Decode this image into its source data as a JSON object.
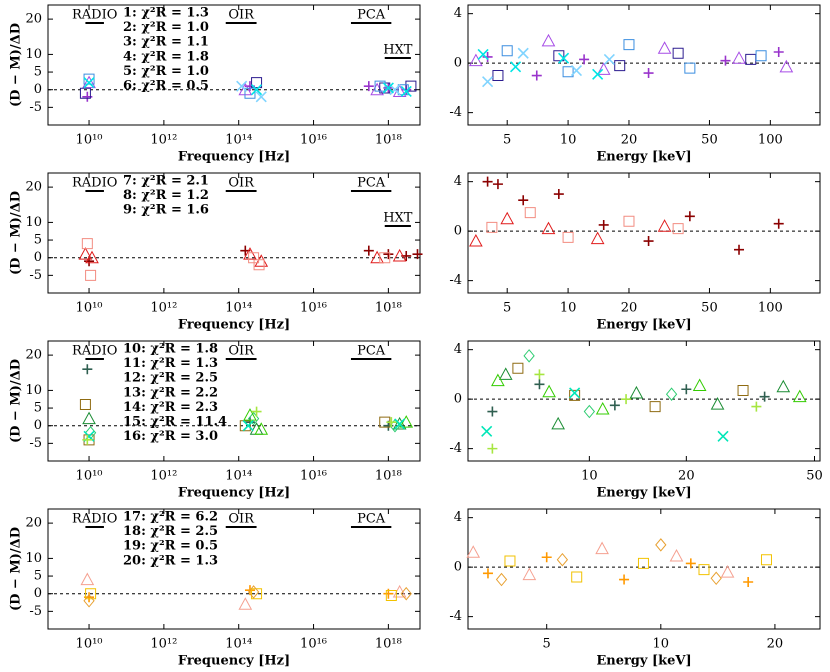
{
  "chart_data": [
    {
      "type": "scatter",
      "xlabel": "Frequency [Hz]",
      "ylabel": "(D − M)/ΔD",
      "log_x": true,
      "zero_line": true,
      "xlim": [
        800000000,
        7000000000000000000
      ],
      "ylim": [
        -10,
        24
      ],
      "xticks": [
        {
          "value": 10000000000,
          "label": "10¹⁰"
        },
        {
          "value": 1000000000000,
          "label": "10¹²"
        },
        {
          "value": 100000000000000,
          "label": "10¹⁴"
        },
        {
          "value": 10000000000000000,
          "label": "10¹⁶"
        },
        {
          "value": 1000000000000000000,
          "label": "10¹⁸"
        }
      ],
      "yticks": [
        -5,
        0,
        5,
        10,
        20
      ],
      "bands": [
        {
          "label": "RADIO",
          "range": [
            8000000000,
            25000000000
          ]
        },
        {
          "label": "OIR",
          "range": [
            45000000000000,
            300000000000000
          ]
        },
        {
          "label": "PCA",
          "range": [
            100000000000000000,
            1200000000000000000
          ]
        },
        {
          "label": "HXT",
          "range": [
            800000000000000000,
            4000000000000000000
          ]
        }
      ],
      "series": [
        {
          "name": "1: χ²R = 1.3",
          "color": "#9933cc",
          "marker": "plus",
          "x": [
            9000000000,
            200000000000000,
            300000000000000000,
            1000000000000000000,
            3000000000000000000
          ],
          "values": [
            -2,
            1,
            1,
            0.5,
            0
          ]
        },
        {
          "name": "2: χ²R = 1.0",
          "color": "#a64ce6",
          "marker": "triangle",
          "x": [
            10000000000,
            150000000000000,
            500000000000000000,
            2000000000000000000
          ],
          "values": [
            2,
            0,
            0,
            -0.5
          ]
        },
        {
          "name": "3: χ²R = 1.1",
          "color": "#2b1b8f",
          "marker": "square",
          "x": [
            8000000000,
            300000000000000,
            800000000000000000,
            4000000000000000000
          ],
          "values": [
            -1,
            2,
            0.5,
            1
          ]
        },
        {
          "name": "4: χ²R = 1.8",
          "color": "#3b8ee0",
          "marker": "square",
          "x": [
            10000000000,
            200000000000000,
            600000000000000000,
            2500000000000000000
          ],
          "values": [
            3,
            -1,
            1,
            0
          ]
        },
        {
          "name": "5: χ²R = 1.0",
          "color": "#80d4ff",
          "marker": "cross",
          "x": [
            120000000000000,
            400000000000000,
            1500000000000000000
          ],
          "values": [
            1,
            -2,
            0
          ]
        },
        {
          "name": "6: χ²R = 0.5",
          "color": "#00e5e5",
          "marker": "cross",
          "x": [
            10000000000,
            300000000000000,
            1000000000000000000,
            3000000000000000000
          ],
          "values": [
            2,
            0,
            0.5,
            -0.5
          ]
        }
      ]
    },
    {
      "type": "scatter",
      "xlabel": "Energy [keV]",
      "log_x": true,
      "zero_line": true,
      "xlim": [
        3.2,
        176
      ],
      "ylim": [
        -5,
        4.7
      ],
      "xticks": [
        5,
        10,
        20,
        50,
        100
      ],
      "yticks": [
        -4,
        0,
        4
      ],
      "series": [
        {
          "color": "#9933cc",
          "marker": "plus",
          "x": [
            4,
            7,
            12,
            25,
            60,
            110
          ],
          "values": [
            0.5,
            -1,
            0.3,
            -0.8,
            0.2,
            0.9
          ]
        },
        {
          "color": "#a64ce6",
          "marker": "triangle",
          "x": [
            3.5,
            8,
            15,
            30,
            70,
            120
          ],
          "values": [
            0.2,
            1.8,
            -0.5,
            1.2,
            0.4,
            -0.3
          ]
        },
        {
          "color": "#2b1b8f",
          "marker": "square",
          "x": [
            4.5,
            9,
            18,
            35,
            80
          ],
          "values": [
            -1,
            0.6,
            -0.2,
            0.8,
            0.3
          ]
        },
        {
          "color": "#3b8ee0",
          "marker": "square",
          "x": [
            5,
            10,
            20,
            40,
            90
          ],
          "values": [
            1,
            -0.7,
            1.5,
            -0.4,
            0.6
          ]
        },
        {
          "color": "#80d4ff",
          "marker": "cross",
          "x": [
            4,
            6,
            11,
            16
          ],
          "values": [
            -1.5,
            0.8,
            -0.6,
            0.3
          ]
        },
        {
          "color": "#00e5e5",
          "marker": "cross",
          "x": [
            3.8,
            5.5,
            9.5,
            14
          ],
          "values": [
            0.7,
            -0.3,
            0.4,
            -0.9
          ]
        }
      ]
    },
    {
      "type": "scatter",
      "xlabel": "Frequency [Hz]",
      "ylabel": "(D − M)/ΔD",
      "log_x": true,
      "zero_line": true,
      "xlim": [
        800000000,
        7000000000000000000
      ],
      "ylim": [
        -10,
        24
      ],
      "xticks": [
        {
          "value": 10000000000,
          "label": "10¹⁰"
        },
        {
          "value": 1000000000000,
          "label": "10¹²"
        },
        {
          "value": 100000000000000,
          "label": "10¹⁴"
        },
        {
          "value": 10000000000000000,
          "label": "10¹⁶"
        },
        {
          "value": 1000000000000000000,
          "label": "10¹⁸"
        }
      ],
      "yticks": [
        -5,
        0,
        5,
        10,
        20
      ],
      "bands": [
        {
          "label": "RADIO",
          "range": [
            8000000000,
            25000000000
          ]
        },
        {
          "label": "OIR",
          "range": [
            45000000000000,
            300000000000000
          ]
        },
        {
          "label": "PCA",
          "range": [
            100000000000000000,
            1200000000000000000
          ]
        },
        {
          "label": "HXT",
          "range": [
            800000000000000000,
            4000000000000000000
          ]
        }
      ],
      "series": [
        {
          "name": "7: χ²R = 2.1",
          "color": "#8b0000",
          "marker": "plus",
          "x": [
            10000000000,
            150000000000000,
            300000000000000000,
            1000000000000000000,
            3000000000000000000,
            6000000000000000000
          ],
          "values": [
            -1,
            2,
            2,
            1,
            0.5,
            1
          ]
        },
        {
          "name": "8: χ²R = 1.2",
          "color": "#e01b1b",
          "marker": "triangle",
          "x": [
            8000000000,
            12000000000,
            200000000000000,
            400000000000000,
            500000000000000000,
            2000000000000000000
          ],
          "values": [
            1,
            0,
            1,
            -1,
            0,
            0.5
          ]
        },
        {
          "name": "9: χ²R = 1.6",
          "color": "#f28c80",
          "marker": "square",
          "x": [
            9000000000,
            11000000000,
            250000000000000,
            350000000000000,
            800000000000000000
          ],
          "values": [
            4,
            -5,
            0,
            -2,
            0
          ]
        }
      ]
    },
    {
      "type": "scatter",
      "xlabel": "Energy [keV]",
      "log_x": true,
      "zero_line": true,
      "xlim": [
        3.2,
        176
      ],
      "ylim": [
        -5,
        4.7
      ],
      "xticks": [
        5,
        10,
        20,
        50,
        100
      ],
      "yticks": [
        -4,
        0,
        4
      ],
      "series": [
        {
          "color": "#8b0000",
          "marker": "plus",
          "x": [
            4,
            4.5,
            6,
            9,
            15,
            25,
            40,
            70,
            110
          ],
          "values": [
            4,
            3.8,
            2.5,
            3,
            0.5,
            -0.8,
            1.2,
            -1.5,
            0.6
          ]
        },
        {
          "color": "#e01b1b",
          "marker": "triangle",
          "x": [
            3.5,
            5,
            8,
            14,
            30
          ],
          "values": [
            -0.8,
            1,
            0.2,
            -0.6,
            0.4
          ]
        },
        {
          "color": "#f28c80",
          "marker": "square",
          "x": [
            4.2,
            6.5,
            10,
            20,
            35
          ],
          "values": [
            0.3,
            1.5,
            -0.5,
            0.8,
            0.2
          ]
        }
      ]
    },
    {
      "type": "scatter",
      "xlabel": "Frequency [Hz]",
      "ylabel": "(D − M)/ΔD",
      "log_x": true,
      "zero_line": true,
      "xlim": [
        800000000,
        7000000000000000000
      ],
      "ylim": [
        -10,
        24
      ],
      "xticks": [
        {
          "value": 10000000000,
          "label": "10¹⁰"
        },
        {
          "value": 1000000000000,
          "label": "10¹²"
        },
        {
          "value": 100000000000000,
          "label": "10¹⁴"
        },
        {
          "value": 10000000000000000,
          "label": "10¹⁶"
        },
        {
          "value": 1000000000000000000,
          "label": "10¹⁸"
        }
      ],
      "yticks": [
        -5,
        0,
        5,
        10,
        20
      ],
      "bands": [
        {
          "label": "RADIO",
          "range": [
            8000000000,
            25000000000
          ]
        },
        {
          "label": "OIR",
          "range": [
            45000000000000,
            300000000000000
          ]
        },
        {
          "label": "PCA",
          "range": [
            100000000000000000,
            1200000000000000000
          ]
        }
      ],
      "series": [
        {
          "name": "10: χ²R = 1.8",
          "color": "#2f5f50",
          "marker": "plus",
          "x": [
            9000000000,
            200000000000000,
            1000000000000000000
          ],
          "values": [
            16,
            1,
            0
          ]
        },
        {
          "name": "11: χ²R = 1.3",
          "color": "#1a8c33",
          "marker": "triangle",
          "x": [
            10000000000,
            300000000000000,
            2000000000000000000
          ],
          "values": [
            2,
            -1,
            0.5
          ]
        },
        {
          "name": "12: χ²R = 2.5",
          "color": "#8f6b12",
          "marker": "square",
          "x": [
            8000000000,
            10000000000,
            150000000000000,
            800000000000000000
          ],
          "values": [
            6,
            -4,
            0,
            1
          ]
        },
        {
          "name": "13: χ²R = 2.2",
          "color": "#2ecc71",
          "marker": "diamond",
          "x": [
            11000000000,
            250000000000000,
            1500000000000000000
          ],
          "values": [
            -2,
            2,
            0
          ]
        },
        {
          "name": "14: χ²R = 2.3",
          "color": "#33cc00",
          "marker": "triangle",
          "x": [
            200000000000000,
            400000000000000,
            3000000000000000000
          ],
          "values": [
            3,
            -1,
            1
          ]
        },
        {
          "name": "15: χ²R = 11.4",
          "color": "#00e6b8",
          "marker": "cross",
          "x": [
            10000000000,
            180000000000000,
            2000000000000000000
          ],
          "values": [
            -3,
            0,
            0.5
          ]
        },
        {
          "name": "16: χ²R = 3.0",
          "color": "#a6e640",
          "marker": "plus",
          "x": [
            9000000000,
            300000000000000,
            1200000000000000000
          ],
          "values": [
            -4,
            4,
            1
          ]
        }
      ]
    },
    {
      "type": "scatter",
      "xlabel": "Energy [keV]",
      "log_x": true,
      "zero_line": true,
      "xlim": [
        4.2,
        52
      ],
      "ylim": [
        -5,
        4.7
      ],
      "xticks": [
        10,
        20,
        50
      ],
      "yticks": [
        -4,
        0,
        4
      ],
      "series": [
        {
          "color": "#2f5f50",
          "marker": "plus",
          "x": [
            5,
            7,
            12,
            20,
            35
          ],
          "values": [
            -1,
            1.2,
            -0.5,
            0.8,
            0.2
          ]
        },
        {
          "color": "#1a8c33",
          "marker": "triangle",
          "x": [
            5.5,
            8,
            14,
            25,
            40
          ],
          "values": [
            2,
            -2,
            0.5,
            -0.4,
            1
          ]
        },
        {
          "color": "#8f6b12",
          "marker": "square",
          "x": [
            6,
            9,
            16,
            30
          ],
          "values": [
            2.5,
            0.3,
            -0.6,
            0.7
          ]
        },
        {
          "color": "#2ecc71",
          "marker": "diamond",
          "x": [
            6.5,
            10,
            18
          ],
          "values": [
            3.5,
            -1,
            0.4
          ]
        },
        {
          "color": "#33cc00",
          "marker": "triangle",
          "x": [
            5.2,
            7.5,
            11,
            22,
            45
          ],
          "values": [
            1.5,
            0.6,
            -0.8,
            1.1,
            0.2
          ]
        },
        {
          "color": "#00e6b8",
          "marker": "cross",
          "x": [
            4.8,
            9,
            26
          ],
          "values": [
            -2.6,
            0.5,
            -3
          ]
        },
        {
          "color": "#a6e640",
          "marker": "plus",
          "x": [
            5,
            7,
            13,
            33
          ],
          "values": [
            -4,
            2,
            0,
            -0.6
          ]
        }
      ]
    },
    {
      "type": "scatter",
      "xlabel": "Frequency [Hz]",
      "ylabel": "(D − M)/ΔD",
      "log_x": true,
      "zero_line": true,
      "xlim": [
        800000000,
        7000000000000000000
      ],
      "ylim": [
        -10,
        24
      ],
      "xticks": [
        {
          "value": 10000000000,
          "label": "10¹⁰"
        },
        {
          "value": 1000000000000,
          "label": "10¹²"
        },
        {
          "value": 100000000000000,
          "label": "10¹⁴"
        },
        {
          "value": 10000000000000000,
          "label": "10¹⁶"
        },
        {
          "value": 1000000000000000000,
          "label": "10¹⁸"
        }
      ],
      "yticks": [
        -5,
        0,
        5,
        10,
        20
      ],
      "bands": [
        {
          "label": "RADIO",
          "range": [
            8000000000,
            25000000000
          ]
        },
        {
          "label": "OIR",
          "range": [
            45000000000000,
            300000000000000
          ]
        },
        {
          "label": "PCA",
          "range": [
            100000000000000000,
            1200000000000000000
          ]
        }
      ],
      "series": [
        {
          "name": "17: χ²R = 6.2",
          "color": "#ff9900",
          "marker": "plus",
          "x": [
            10000000000,
            200000000000000,
            1000000000000000000
          ],
          "values": [
            -1,
            1,
            0
          ]
        },
        {
          "name": "18: χ²R = 2.5",
          "color": "#f5a090",
          "marker": "triangle",
          "x": [
            9000000000,
            150000000000000,
            2000000000000000000
          ],
          "values": [
            4,
            -3,
            0.5
          ]
        },
        {
          "name": "19: χ²R = 0.5",
          "color": "#f2c200",
          "marker": "square",
          "x": [
            11000000000,
            300000000000000,
            1200000000000000000
          ],
          "values": [
            0,
            0,
            -0.5
          ]
        },
        {
          "name": "20: χ²R = 1.3",
          "color": "#e8a030",
          "marker": "diamond",
          "x": [
            10000000000,
            250000000000000,
            3000000000000000000
          ],
          "values": [
            -2,
            0.5,
            0
          ]
        }
      ]
    },
    {
      "type": "scatter",
      "xlabel": "Energy [keV]",
      "log_x": true,
      "zero_line": true,
      "xlim": [
        3.1,
        26.3
      ],
      "ylim": [
        -5,
        4.7
      ],
      "xticks": [
        5,
        10,
        20
      ],
      "yticks": [
        -4,
        0,
        4
      ],
      "series": [
        {
          "color": "#ff9900",
          "marker": "plus",
          "x": [
            3.5,
            5,
            8,
            12,
            17
          ],
          "values": [
            -0.5,
            0.8,
            -1,
            0.3,
            -1.2
          ]
        },
        {
          "color": "#f5a090",
          "marker": "triangle",
          "x": [
            3.2,
            4.5,
            7,
            11,
            15
          ],
          "values": [
            1.2,
            -0.6,
            1.5,
            0.9,
            -0.4
          ]
        },
        {
          "color": "#f2c200",
          "marker": "square",
          "x": [
            4,
            6,
            9,
            13,
            19
          ],
          "values": [
            0.5,
            -0.8,
            0.3,
            -0.2,
            0.6
          ]
        },
        {
          "color": "#e8a030",
          "marker": "diamond",
          "x": [
            3.8,
            5.5,
            10,
            14
          ],
          "values": [
            -1,
            0.6,
            1.8,
            -0.9
          ]
        }
      ]
    }
  ]
}
